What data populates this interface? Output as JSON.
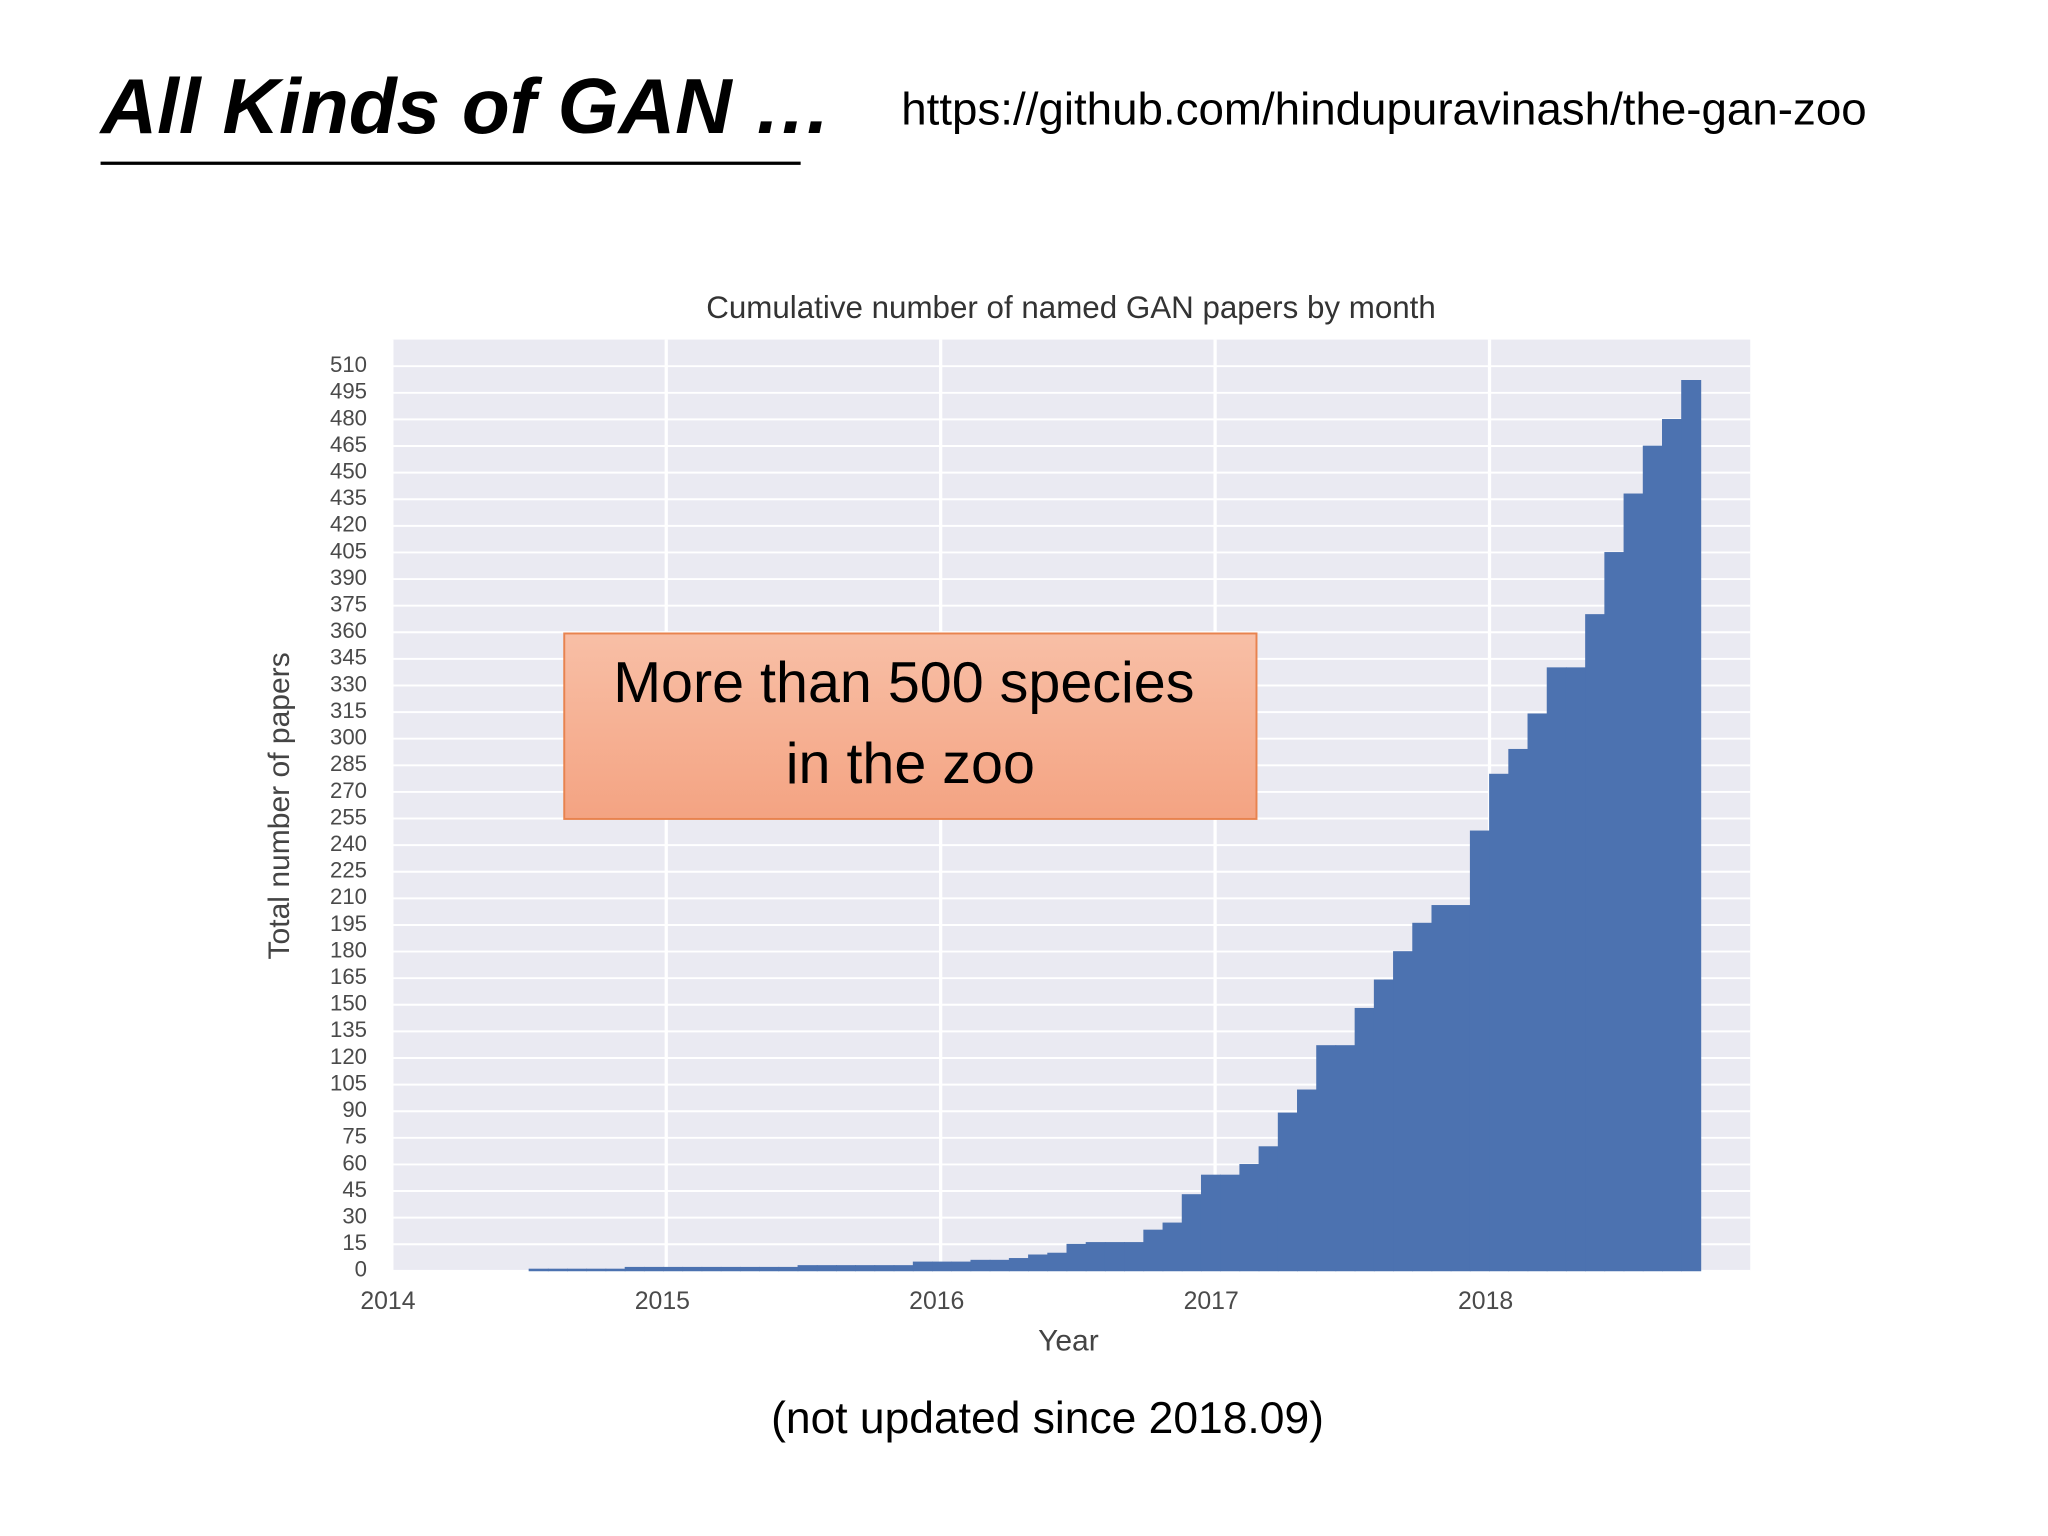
{
  "slide": {
    "title": "All Kinds of GAN …",
    "url": "https://github.com/hindupuravinash/the-gan-zoo",
    "footnote": "(not updated since 2018.09)"
  },
  "chart_data": {
    "type": "histogram",
    "title": "Cumulative number of named GAN papers by month",
    "xlabel": "Year",
    "ylabel": "Total number of papers",
    "annotation": [
      "More than 500 species",
      "in the zoo"
    ],
    "bins": [
      2014.5,
      2014.57,
      2014.64,
      2014.71,
      2014.78,
      2014.85,
      2014.92,
      2014.99,
      2015.06,
      2015.13,
      2015.2,
      2015.27,
      2015.34,
      2015.41,
      2015.48,
      2015.55,
      2015.62,
      2015.69,
      2015.76,
      2015.83,
      2015.9,
      2015.97,
      2016.04,
      2016.11,
      2016.18,
      2016.25,
      2016.32,
      2016.39,
      2016.46,
      2016.53,
      2016.6,
      2016.67,
      2016.74,
      2016.81,
      2016.88,
      2016.95,
      2017.02,
      2017.09,
      2017.16,
      2017.23,
      2017.3,
      2017.37,
      2017.44,
      2017.51,
      2017.58,
      2017.65,
      2017.72,
      2017.79,
      2017.86,
      2017.93,
      2018,
      2018.07,
      2018.14,
      2018.21,
      2018.28,
      2018.35,
      2018.42,
      2018.49,
      2018.56,
      2018.63,
      2018.7,
      2018.77
    ],
    "values": [
      1,
      1,
      1,
      1,
      1,
      2,
      2,
      2,
      2,
      2,
      2,
      2,
      2,
      2,
      3,
      3,
      3,
      3,
      3,
      3,
      5,
      5,
      5,
      6,
      6,
      7,
      9,
      10,
      15,
      16,
      16,
      16,
      23,
      27,
      43,
      54,
      54,
      60,
      70,
      89,
      102,
      127,
      127,
      148,
      164,
      180,
      196,
      206,
      206,
      248,
      280,
      294,
      314,
      340,
      340,
      370,
      405,
      438,
      465,
      480,
      502
    ],
    "color": "#4c72b0",
    "xlim": [
      2014,
      2018.95
    ],
    "xticks": [
      2014,
      2015,
      2016,
      2017,
      2018
    ],
    "ylim": [
      0,
      525
    ],
    "yticks": [
      0,
      15,
      30,
      45,
      60,
      75,
      90,
      105,
      120,
      135,
      150,
      165,
      180,
      195,
      210,
      225,
      240,
      255,
      270,
      285,
      300,
      315,
      330,
      345,
      360,
      375,
      390,
      405,
      420,
      435,
      450,
      465,
      480,
      495,
      510
    ],
    "grid": true
  }
}
